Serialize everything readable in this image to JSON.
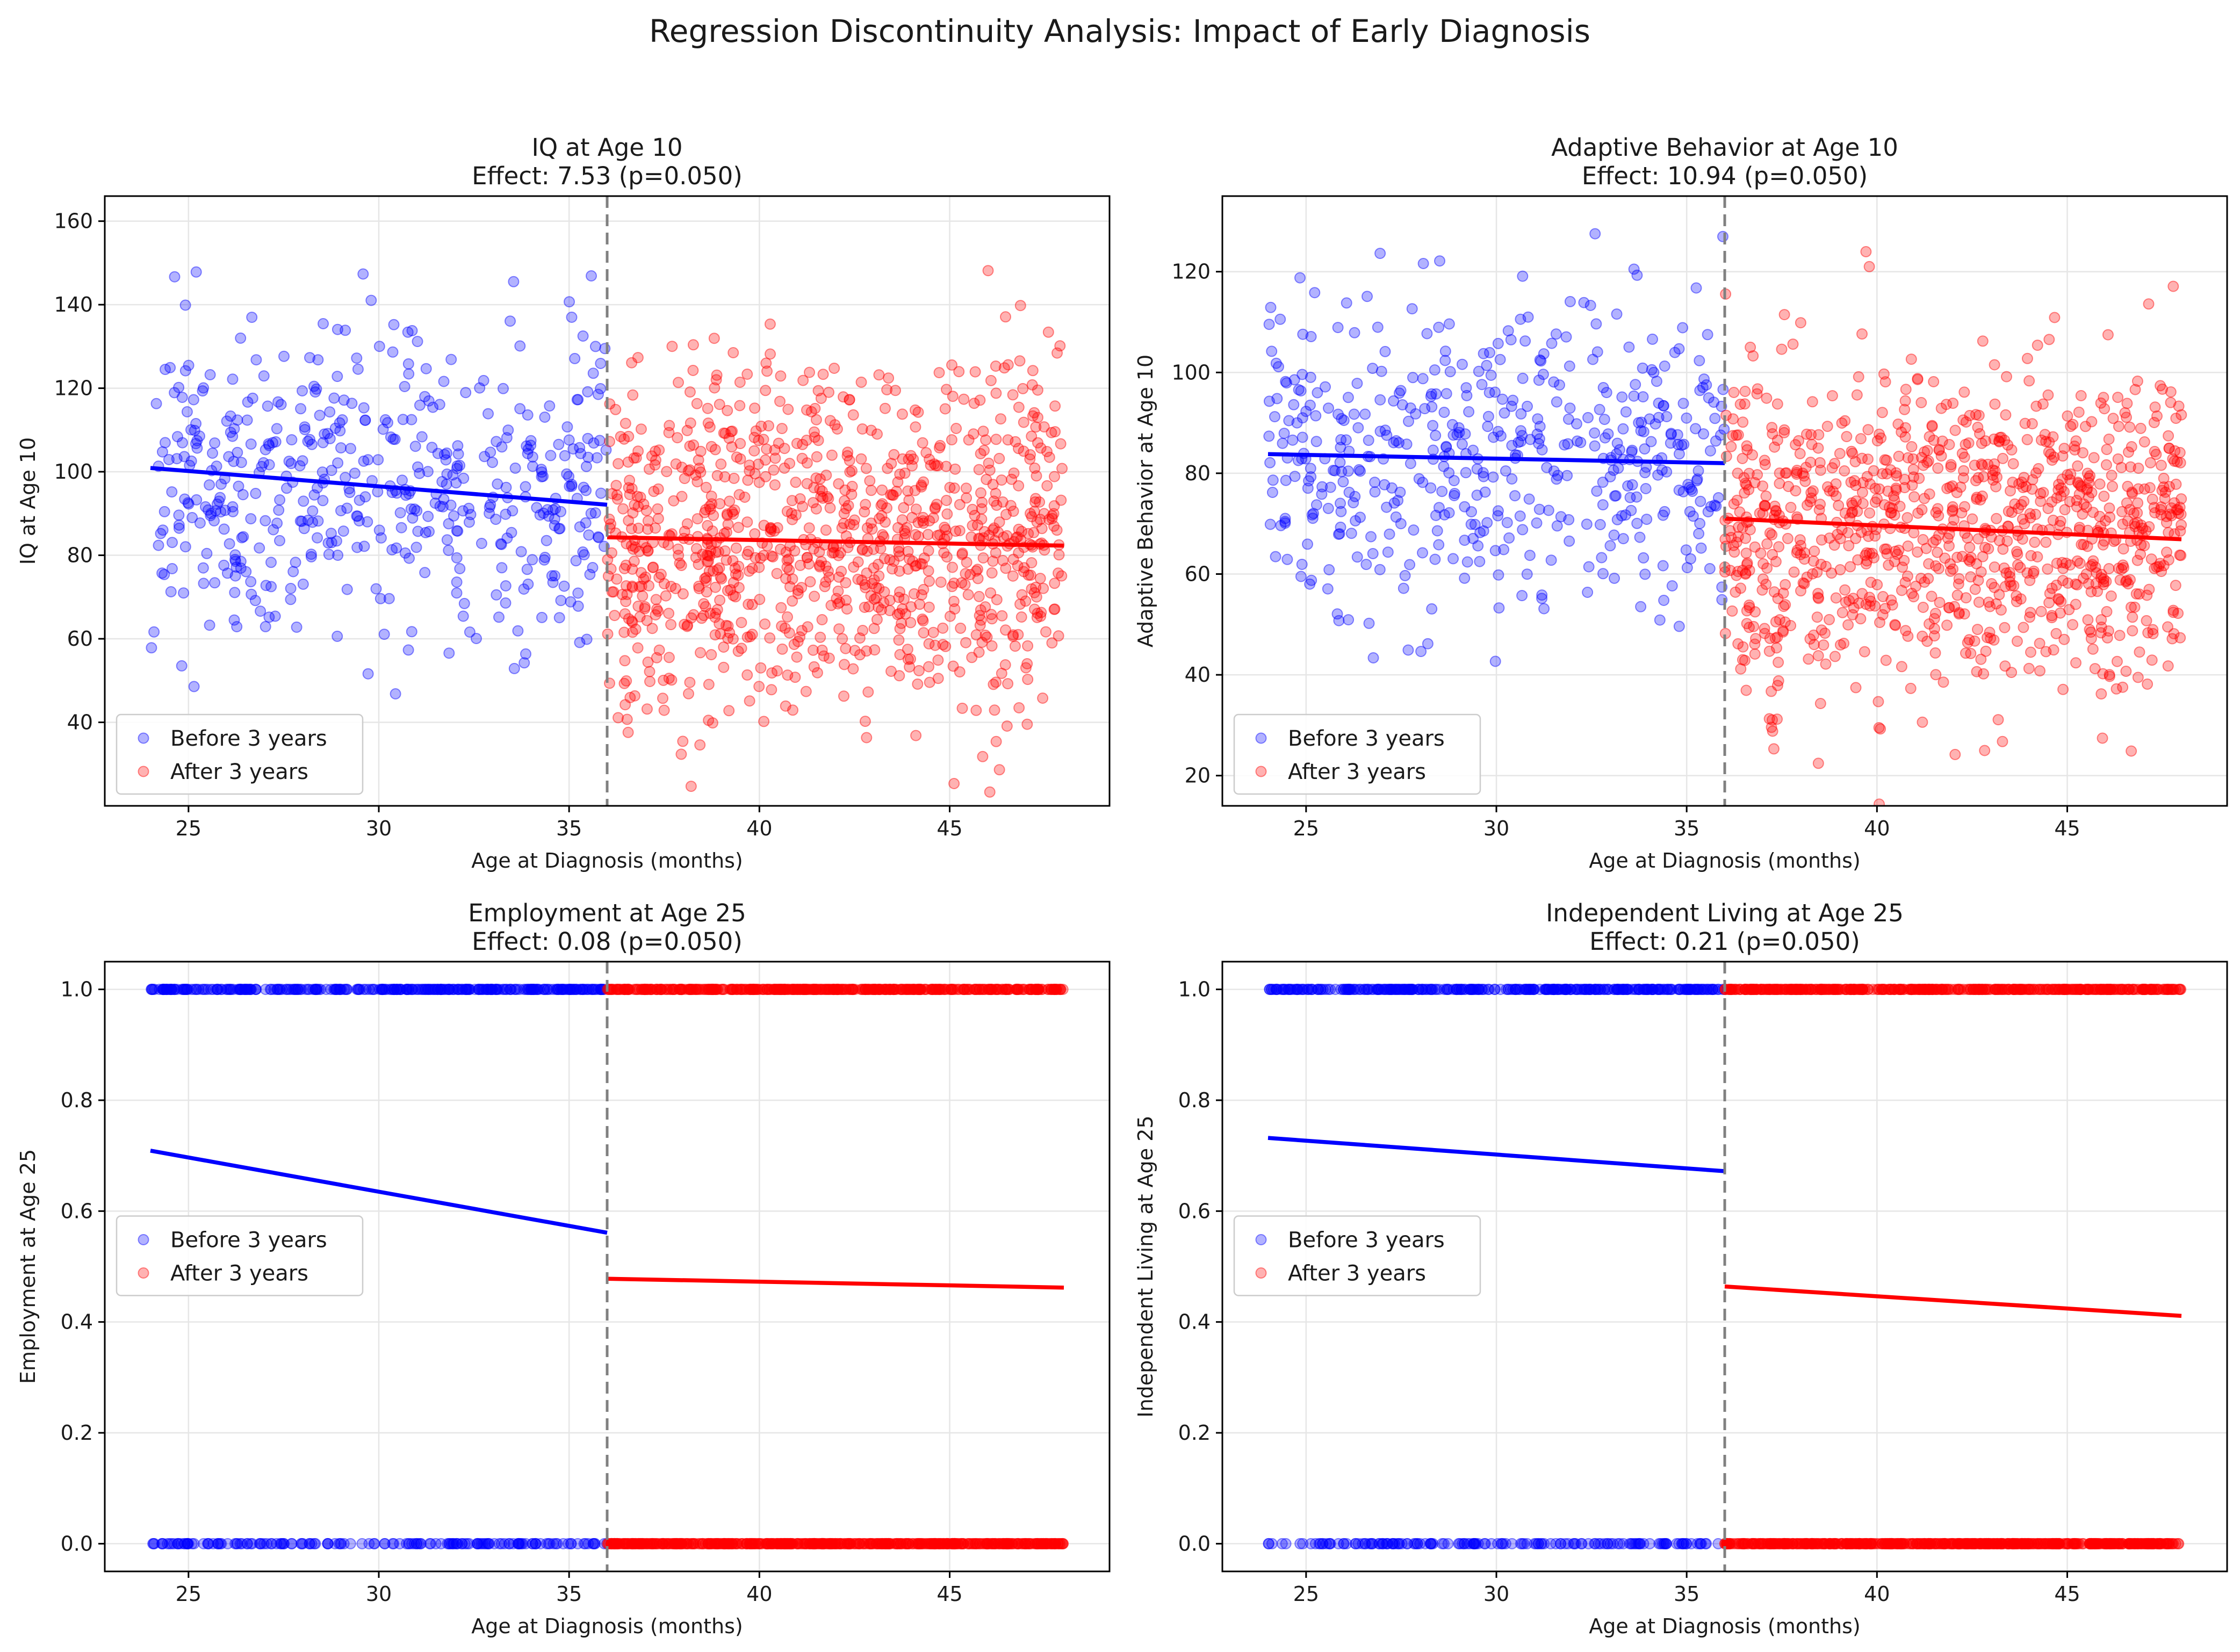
{
  "figure_title": "Regression Discontinuity Analysis: Impact of Early Diagnosis",
  "colors": {
    "before": "#0000ff",
    "after": "#ff0000",
    "cutoff_line": "#808080",
    "grid": "#e6e6e6"
  },
  "chart_data": [
    {
      "type": "scatter",
      "title": "IQ at Age 10",
      "subtitle": "Effect: 7.53 (p=0.050)",
      "xlabel": "Age at Diagnosis (months)",
      "ylabel": "IQ at Age 10",
      "xlim": [
        22.8,
        49.2
      ],
      "ylim": [
        20,
        166
      ],
      "xticks": [
        25,
        30,
        35,
        40,
        45
      ],
      "yticks": [
        40,
        60,
        80,
        100,
        120,
        140,
        160
      ],
      "tick_decimals": 0,
      "grid": true,
      "legend_position": "lower-left",
      "cutoff": 36,
      "point_mode": "continuous",
      "series": [
        {
          "name": "Before 3 years",
          "color": "#0000ff",
          "x_range": [
            24,
            36
          ],
          "n_points": 500,
          "mean": 96,
          "sd": 19,
          "fit": [
            [
              24,
              100.9
            ],
            [
              36,
              92.1
            ]
          ]
        },
        {
          "name": "After 3 years",
          "color": "#ff0000",
          "x_range": [
            36,
            48
          ],
          "n_points": 1000,
          "mean": 83.5,
          "sd": 20,
          "fit": [
            [
              36,
              84.3
            ],
            [
              48,
              82.3
            ]
          ]
        }
      ]
    },
    {
      "type": "scatter",
      "title": "Adaptive Behavior at Age 10",
      "subtitle": "Effect: 10.94 (p=0.050)",
      "xlabel": "Age at Diagnosis (months)",
      "ylabel": "Adaptive Behavior at Age 10",
      "xlim": [
        22.8,
        49.2
      ],
      "ylim": [
        14,
        135
      ],
      "xticks": [
        25,
        30,
        35,
        40,
        45
      ],
      "yticks": [
        20,
        40,
        60,
        80,
        100,
        120
      ],
      "tick_decimals": 0,
      "grid": true,
      "legend_position": "lower-left",
      "cutoff": 36,
      "point_mode": "continuous",
      "series": [
        {
          "name": "Before 3 years",
          "color": "#0000ff",
          "x_range": [
            24,
            36
          ],
          "n_points": 500,
          "mean": 83,
          "sd": 15,
          "fit": [
            [
              24,
              83.8
            ],
            [
              36,
              82.0
            ]
          ]
        },
        {
          "name": "After 3 years",
          "color": "#ff0000",
          "x_range": [
            36,
            48
          ],
          "n_points": 1000,
          "mean": 69,
          "sd": 16,
          "fit": [
            [
              36,
              71.0
            ],
            [
              48,
              66.9
            ]
          ]
        }
      ]
    },
    {
      "type": "scatter",
      "title": "Employment at Age 25",
      "subtitle": "Effect: 0.08 (p=0.050)",
      "xlabel": "Age at Diagnosis (months)",
      "ylabel": "Employment at Age 25",
      "xlim": [
        22.8,
        49.2
      ],
      "ylim": [
        -0.05,
        1.05
      ],
      "xticks": [
        25,
        30,
        35,
        40,
        45
      ],
      "yticks": [
        0.0,
        0.2,
        0.4,
        0.6,
        0.8,
        1.0
      ],
      "tick_decimals": 1,
      "grid": true,
      "legend_position": "center-left",
      "cutoff": 36,
      "point_mode": "binary",
      "series": [
        {
          "name": "Before 3 years",
          "color": "#0000ff",
          "x_range": [
            24,
            36
          ],
          "n_points": 500,
          "p_one": 0.63,
          "fit": [
            [
              24,
              0.709
            ],
            [
              36,
              0.561
            ]
          ]
        },
        {
          "name": "After 3 years",
          "color": "#ff0000",
          "x_range": [
            36,
            48
          ],
          "n_points": 1000,
          "p_one": 0.47,
          "fit": [
            [
              36,
              0.478
            ],
            [
              48,
              0.462
            ]
          ]
        }
      ]
    },
    {
      "type": "scatter",
      "title": "Independent Living at Age 25",
      "subtitle": "Effect: 0.21 (p=0.050)",
      "xlabel": "Age at Diagnosis (months)",
      "ylabel": "Independent Living at Age 25",
      "xlim": [
        22.8,
        49.2
      ],
      "ylim": [
        -0.05,
        1.05
      ],
      "xticks": [
        25,
        30,
        35,
        40,
        45
      ],
      "yticks": [
        0.0,
        0.2,
        0.4,
        0.6,
        0.8,
        1.0
      ],
      "tick_decimals": 1,
      "grid": true,
      "legend_position": "center-left",
      "cutoff": 36,
      "point_mode": "binary",
      "series": [
        {
          "name": "Before 3 years",
          "color": "#0000ff",
          "x_range": [
            24,
            36
          ],
          "n_points": 500,
          "p_one": 0.7,
          "fit": [
            [
              24,
              0.732
            ],
            [
              36,
              0.672
            ]
          ]
        },
        {
          "name": "After 3 years",
          "color": "#ff0000",
          "x_range": [
            36,
            48
          ],
          "n_points": 1000,
          "p_one": 0.44,
          "fit": [
            [
              36,
              0.464
            ],
            [
              48,
              0.411
            ]
          ]
        }
      ]
    }
  ]
}
